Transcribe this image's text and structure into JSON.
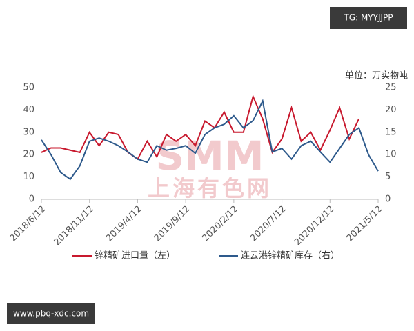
{
  "chart_data": {
    "type": "line",
    "unit_label": "单位：万实物吨",
    "watermarks": [
      "SMM",
      "上海有色网"
    ],
    "badges": [
      "TG: MYYJJPP",
      "www.pbq-xdc.com"
    ],
    "categories": [
      "2018/6/12",
      null,
      null,
      null,
      null,
      "2018/11/12",
      null,
      null,
      null,
      null,
      "2019/4/12",
      null,
      null,
      null,
      null,
      "2019/9/12",
      null,
      null,
      null,
      null,
      "2020/2/12",
      null,
      null,
      null,
      null,
      "2020/7/12",
      null,
      null,
      null,
      null,
      "2020/12/12",
      null,
      null,
      null,
      null,
      "2021/5/12"
    ],
    "ylim": [
      0,
      50
    ],
    "yticks": [
      0,
      10,
      20,
      30,
      40,
      50
    ],
    "y2lim": [
      0,
      25
    ],
    "y2ticks": [
      0,
      5,
      10,
      15,
      20,
      25
    ],
    "legend": "bottom",
    "series": [
      {
        "name": "锌精矿进口量（左）",
        "color": "#c8192e",
        "axis": "y",
        "values": [
          21,
          23,
          23,
          22,
          21,
          30,
          24,
          30,
          29,
          21,
          18,
          26,
          19,
          29,
          26,
          29,
          24,
          35,
          32,
          39,
          30,
          30,
          46,
          36,
          21,
          27,
          41,
          26,
          30,
          22,
          31,
          41,
          27,
          36,
          null,
          null
        ]
      },
      {
        "name": "连云港锌精矿库存（右）",
        "color": "#2e5a8c",
        "axis": "y2",
        "values": [
          13.3,
          10,
          6,
          4.5,
          7.5,
          13,
          13.7,
          13,
          12,
          10.6,
          9,
          8.3,
          12,
          11,
          11.4,
          12,
          10.3,
          14.5,
          16,
          16.8,
          18.7,
          16,
          17.6,
          22,
          10.6,
          11.4,
          9,
          12,
          13,
          10.6,
          8.3,
          11.4,
          14.5,
          16,
          10,
          6.3
        ]
      }
    ]
  }
}
